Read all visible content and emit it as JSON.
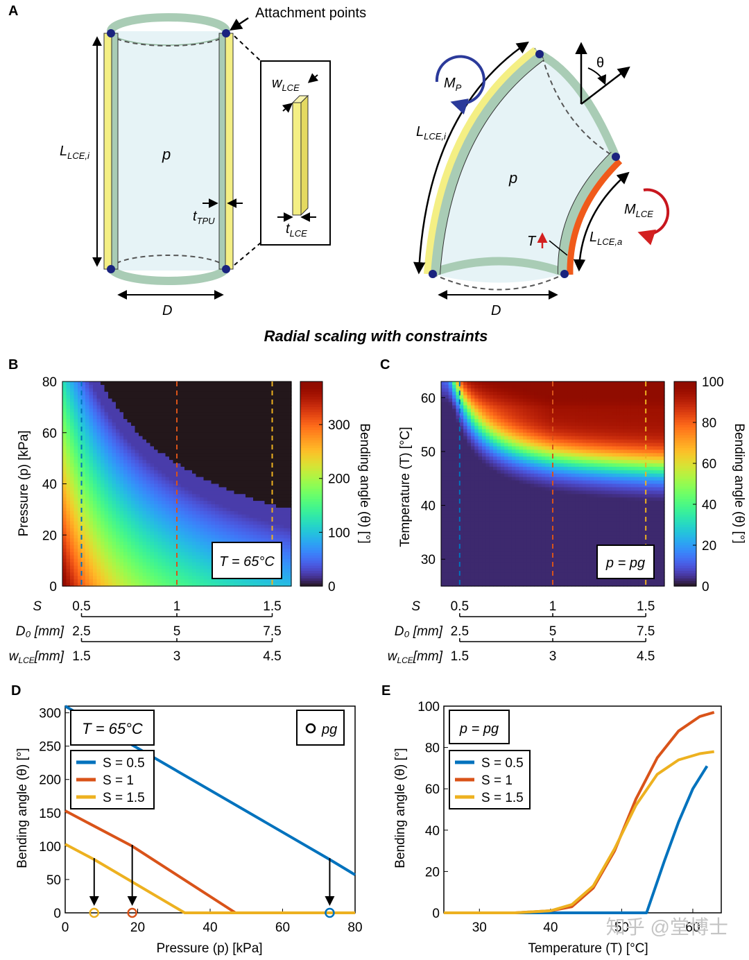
{
  "panel_letters": {
    "a": "A",
    "b": "B",
    "c": "C",
    "d": "D",
    "e": "E"
  },
  "schematic": {
    "attachment_label": "Attachment points",
    "L_lce_i": "L",
    "L_lce_i_sub": "LCE,i",
    "L_lce_a_sub": "LCE,a",
    "p": "p",
    "D": "D",
    "t": "t",
    "t_tpu_sub": "TPU",
    "t_lce_sub": "LCE",
    "w": "w",
    "w_lce_sub": "LCE",
    "M": "M",
    "M_p_sub": "P",
    "M_lce_sub": "LCE",
    "theta": "θ",
    "T": "T",
    "caption": "Radial scaling with constraints"
  },
  "scale_axes": {
    "S_label": "S",
    "D0_label": "D₀ [mm]",
    "w_label": "w",
    "w_sub": "LCE",
    "w_unit": "[mm]",
    "S_ticks": [
      "0.5",
      "1",
      "1.5"
    ],
    "D0_ticks": [
      "2.5",
      "5",
      "7.5"
    ],
    "w_ticks": [
      "1.5",
      "3",
      "4.5"
    ]
  },
  "colors": {
    "blue": "#0072BD",
    "orange": "#D95319",
    "yellow": "#EDB120",
    "tube_fill": "#e6f3f6",
    "membrane": "#a9ccb5",
    "lce_yellow": "#f4ef84",
    "lce_active": "#f05a1a",
    "dot": "#1a237e"
  },
  "chart_data": [
    {
      "panel": "B",
      "type": "heatmap",
      "ylabel": "Pressure (p) [kPa]",
      "yticks": [
        "0",
        "20",
        "40",
        "60",
        "80"
      ],
      "ylim": [
        0,
        80
      ],
      "xlim": [
        0.4,
        1.6
      ],
      "dashed_lines_S": [
        0.5,
        1,
        1.5
      ],
      "annotation": "T = 65°C",
      "colorbar": {
        "label": "Bending angle (θ) [°]",
        "ticks": [
          "0",
          "100",
          "200",
          "300"
        ],
        "range": [
          0,
          380
        ],
        "colormap": "turbo"
      }
    },
    {
      "panel": "C",
      "type": "heatmap",
      "ylabel": "Temperature (T) [°C]",
      "yticks": [
        "30",
        "40",
        "50",
        "60"
      ],
      "ylim": [
        25,
        63
      ],
      "xlim": [
        0.4,
        1.6
      ],
      "dashed_lines_S": [
        0.5,
        1,
        1.5
      ],
      "annotation": "p = pg",
      "colorbar": {
        "label": "Bending angle (θ) [°]",
        "ticks": [
          "0",
          "20",
          "40",
          "60",
          "80",
          "100"
        ],
        "range": [
          0,
          100
        ],
        "colormap": "turbo"
      }
    },
    {
      "panel": "D",
      "type": "line",
      "xlabel": "Pressure (p) [kPa]",
      "ylabel": "Bending angle (θ) [°]",
      "xlim": [
        0,
        80
      ],
      "ylim": [
        0,
        310
      ],
      "xticks": [
        "0",
        "20",
        "40",
        "60",
        "80"
      ],
      "yticks": [
        "0",
        "50",
        "100",
        "150",
        "200",
        "250",
        "300"
      ],
      "annotation": "T = 65°C",
      "marker_legend": "pg",
      "series": [
        {
          "name": "S = 0.5",
          "color": "#0072BD",
          "x": [
            0,
            73,
            80
          ],
          "y": [
            310,
            80,
            57
          ]
        },
        {
          "name": "S = 1",
          "color": "#D95319",
          "x": [
            0,
            18.5,
            47,
            80
          ],
          "y": [
            153,
            100,
            0,
            0
          ]
        },
        {
          "name": "S = 1.5",
          "color": "#EDB120",
          "x": [
            0,
            8,
            33,
            80
          ],
          "y": [
            103,
            80,
            0,
            0
          ]
        }
      ],
      "pg_markers": [
        {
          "x": 8,
          "y": 0,
          "color": "#EDB120"
        },
        {
          "x": 18.5,
          "y": 0,
          "color": "#D95319"
        },
        {
          "x": 73,
          "y": 0,
          "color": "#0072BD"
        }
      ],
      "arrows": [
        {
          "x": 8,
          "from": 82,
          "to": 5
        },
        {
          "x": 18.5,
          "from": 102,
          "to": 5
        },
        {
          "x": 73,
          "from": 82,
          "to": 5
        }
      ]
    },
    {
      "panel": "E",
      "type": "line",
      "xlabel": "Temperature (T) [°C]",
      "ylabel": "Bending angle (θ) [°]",
      "xlim": [
        25,
        64
      ],
      "ylim": [
        0,
        100
      ],
      "xticks": [
        "30",
        "40",
        "50",
        "60"
      ],
      "yticks": [
        "0",
        "20",
        "40",
        "60",
        "80",
        "100"
      ],
      "annotation": "p = pg",
      "series": [
        {
          "name": "S = 0.5",
          "color": "#0072BD",
          "x": [
            25,
            40,
            50,
            53.5,
            56,
            58,
            60,
            62
          ],
          "y": [
            0,
            0,
            0,
            0,
            25,
            44,
            60,
            71
          ]
        },
        {
          "name": "S = 1",
          "color": "#D95319",
          "x": [
            25,
            35,
            40,
            43,
            46,
            49,
            52,
            55,
            58,
            61,
            63
          ],
          "y": [
            0,
            0,
            1,
            3,
            12,
            30,
            55,
            75,
            88,
            95,
            97
          ]
        },
        {
          "name": "S = 1.5",
          "color": "#EDB120",
          "x": [
            25,
            35,
            40,
            43,
            46,
            49,
            52,
            55,
            58,
            61,
            63
          ],
          "y": [
            0,
            0,
            1,
            4,
            13,
            31,
            52,
            67,
            74,
            77,
            78
          ]
        }
      ]
    }
  ],
  "watermark": "知乎 @堂博士"
}
